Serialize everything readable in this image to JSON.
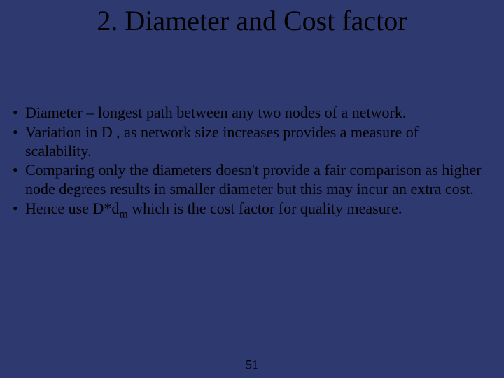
{
  "background_color": "#2e3970",
  "text_color": "#000000",
  "font_family": "Times New Roman",
  "title": "2. Diameter and Cost factor",
  "title_fontsize": 40,
  "bullet_fontsize": 22,
  "bullets": [
    "Diameter – longest path between any two nodes of a network.",
    "Variation in D , as network size increases provides a measure of scalability.",
    "Comparing only the diameters doesn't provide a fair comparison as higher node degrees results in smaller diameter but this may incur an extra cost.",
    "Hence use D*d",
    " which is the cost factor for quality measure."
  ],
  "subscript": "m",
  "page_number": "51"
}
